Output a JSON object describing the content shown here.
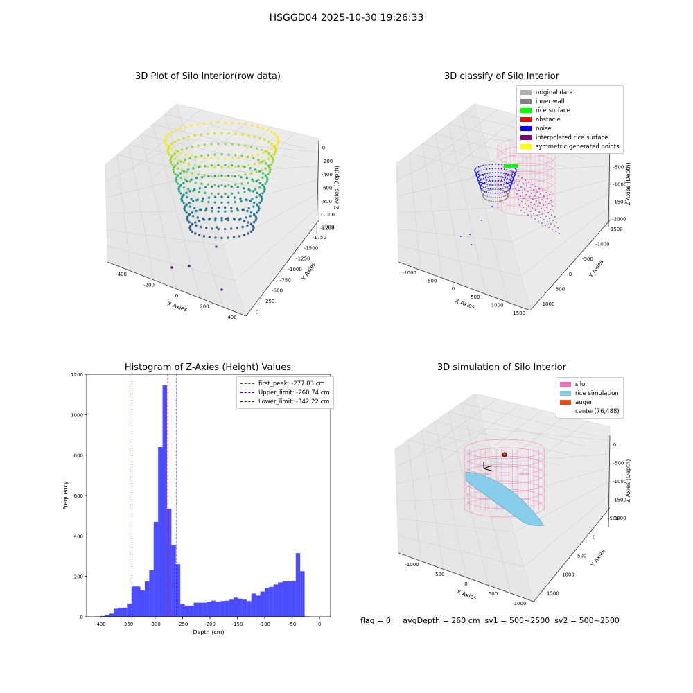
{
  "figure_title": "HSGGD04 2025-10-30 19:26:33",
  "panels": {
    "raw": {
      "title": "3D Plot of Silo Interior(row data)",
      "xlabel": "X Axies",
      "ylabel": "Y Axies",
      "zlabel": "Z Axies (Depth)",
      "xticks": [
        "-400",
        "-200",
        "0",
        "200",
        "400"
      ],
      "yticks": [
        "0",
        "-250",
        "-500",
        "-750",
        "-1000",
        "-1250",
        "-1500",
        "-1750",
        "-2000"
      ],
      "zticks": [
        "0",
        "-200",
        "-400",
        "-600",
        "-800",
        "-1000",
        "-1200"
      ]
    },
    "classify": {
      "title": "3D classify of Silo Interior",
      "xlabel": "X Axies",
      "ylabel": "Y Axies",
      "zlabel": "Z Axies (Depth)",
      "xticks": [
        "-1000",
        "-500",
        "0",
        "500",
        "1000",
        "1500"
      ],
      "yticks": [
        "1000",
        "500",
        "0",
        "-500",
        "-1000",
        "-1500"
      ],
      "zticks": [
        "0",
        "-500",
        "-1000",
        "-1500",
        "-2000"
      ],
      "legend": [
        {
          "label": "original data",
          "color": "#b0b0b0"
        },
        {
          "label": "inner wall",
          "color": "#808080"
        },
        {
          "label": "rice surface",
          "color": "#00ff00"
        },
        {
          "label": "obstacle",
          "color": "#ff0000"
        },
        {
          "label": "noise",
          "color": "#0000ff"
        },
        {
          "label": "interpolated rice surface",
          "color": "#800080"
        },
        {
          "label": "symmetric generated points",
          "color": "#ffff00"
        }
      ]
    },
    "simulation": {
      "title": "3D simulation of Silo Interior",
      "xlabel": "X Axies",
      "ylabel": "Y Axies",
      "zlabel": "Z Axies (Depth)",
      "xticks": [
        "-1000",
        "-500",
        "0",
        "500",
        "1000"
      ],
      "yticks": [
        "1500",
        "1000",
        "500",
        "0",
        "-500"
      ],
      "zticks": [
        "0",
        "-500",
        "-1000",
        "-1500",
        "-2000"
      ],
      "legend": [
        {
          "label": "silo",
          "color": "#ff69b4"
        },
        {
          "label": "rice simulation",
          "color": "#87ceeb"
        },
        {
          "label": "auger",
          "color": "#ff4500"
        },
        {
          "label": "center(76,488)",
          "color": "#ffffff"
        }
      ]
    }
  },
  "footer": {
    "flag": "flag = 0",
    "avg": "avgDepth = 260 cm",
    "sv1": "sv1 = 500~2500",
    "sv2": "sv2 = 500~2500"
  },
  "chart_data": [
    {
      "type": "histogram",
      "title": "Histogram of Z-Axies (Height) Values",
      "xlabel": "Depth (cm)",
      "ylabel": "Frequency",
      "xlim": [
        -425,
        20
      ],
      "ylim": [
        0,
        1200
      ],
      "xticks": [
        -400,
        -350,
        -300,
        -250,
        -200,
        -150,
        -100,
        -50,
        0
      ],
      "yticks": [
        0,
        200,
        400,
        600,
        800,
        1000,
        1200
      ],
      "bar_color": "#0000ff",
      "bin_width": 8.1,
      "bin_start": -408.0,
      "values": [
        2,
        4,
        9,
        16,
        40,
        45,
        45,
        65,
        150,
        150,
        130,
        175,
        230,
        470,
        840,
        1145,
        535,
        355,
        260,
        65,
        55,
        55,
        70,
        70,
        70,
        75,
        80,
        75,
        78,
        80,
        85,
        95,
        90,
        85,
        78,
        115,
        105,
        125,
        142,
        148,
        160,
        170,
        175,
        175,
        178,
        315,
        225,
        2
      ],
      "vlines": [
        {
          "label": "first_peak: -277.03 cm",
          "x": -277.03,
          "color": "#ff0000"
        },
        {
          "label": "Upper_limit: -260.74 cm",
          "x": -260.74,
          "color": "#0000ff"
        },
        {
          "label": "Lower_limit: -342.22 cm",
          "x": -342.22,
          "color": "#0000ff"
        }
      ]
    }
  ]
}
